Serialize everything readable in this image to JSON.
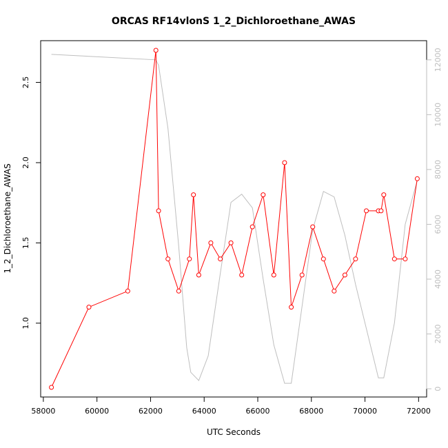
{
  "chart_data": {
    "type": "line",
    "title": "ORCAS RF14vlonS 1_2_Dichloroethane_AWAS",
    "xlabel": "UTC Seconds",
    "ylabel": "1_2_Dichloroethane_AWAS",
    "xlim": [
      57900,
      72300
    ],
    "ylim": [
      0.54,
      2.76
    ],
    "y2lim": [
      -300,
      12700
    ],
    "x_ticks": [
      58000,
      60000,
      62000,
      64000,
      66000,
      68000,
      70000,
      72000
    ],
    "y_ticks": [
      1.0,
      1.5,
      2.0,
      2.5
    ],
    "y_tick_labels": [
      "1.0",
      "1.5",
      "2.0",
      "2.5"
    ],
    "y2_ticks": [
      0,
      2000,
      4000,
      6000,
      8000,
      10000,
      12000
    ],
    "grid": false,
    "series": [
      {
        "axis": "left",
        "color": "#ff0000",
        "marker": "open-circle",
        "x": [
          58300,
          59700,
          61150,
          62200,
          62300,
          62650,
          63050,
          63450,
          63600,
          63800,
          64250,
          64600,
          65000,
          65400,
          65800,
          66200,
          66600,
          67000,
          67250,
          67650,
          68050,
          68450,
          68850,
          69250,
          69650,
          70050,
          70500,
          70600,
          70700,
          71100,
          71500,
          71950
        ],
        "values": [
          0.6,
          1.1,
          1.2,
          2.7,
          1.7,
          1.4,
          1.2,
          1.4,
          1.8,
          1.3,
          1.5,
          1.4,
          1.5,
          1.3,
          1.6,
          1.8,
          1.3,
          2.0,
          1.1,
          1.3,
          1.6,
          1.4,
          1.2,
          1.3,
          1.4,
          1.7,
          1.7,
          1.7,
          1.8,
          1.4,
          1.4,
          1.9
        ]
      },
      {
        "axis": "right",
        "color": "#bebebe",
        "marker": "none",
        "x": [
          58300,
          62200,
          62300,
          62650,
          63050,
          63350,
          63500,
          63800,
          64150,
          64600,
          65000,
          65400,
          65800,
          66200,
          66600,
          67000,
          67250,
          67650,
          68050,
          68450,
          68850,
          69250,
          69650,
          70050,
          70500,
          70700,
          71100,
          71500,
          71950
        ],
        "values": [
          12200,
          12000,
          11800,
          9500,
          5200,
          1500,
          600,
          300,
          1200,
          4200,
          6800,
          7100,
          6600,
          4000,
          1600,
          200,
          200,
          3000,
          5800,
          7200,
          7000,
          5600,
          3800,
          2200,
          400,
          400,
          2400,
          6000,
          7600
        ]
      }
    ]
  }
}
